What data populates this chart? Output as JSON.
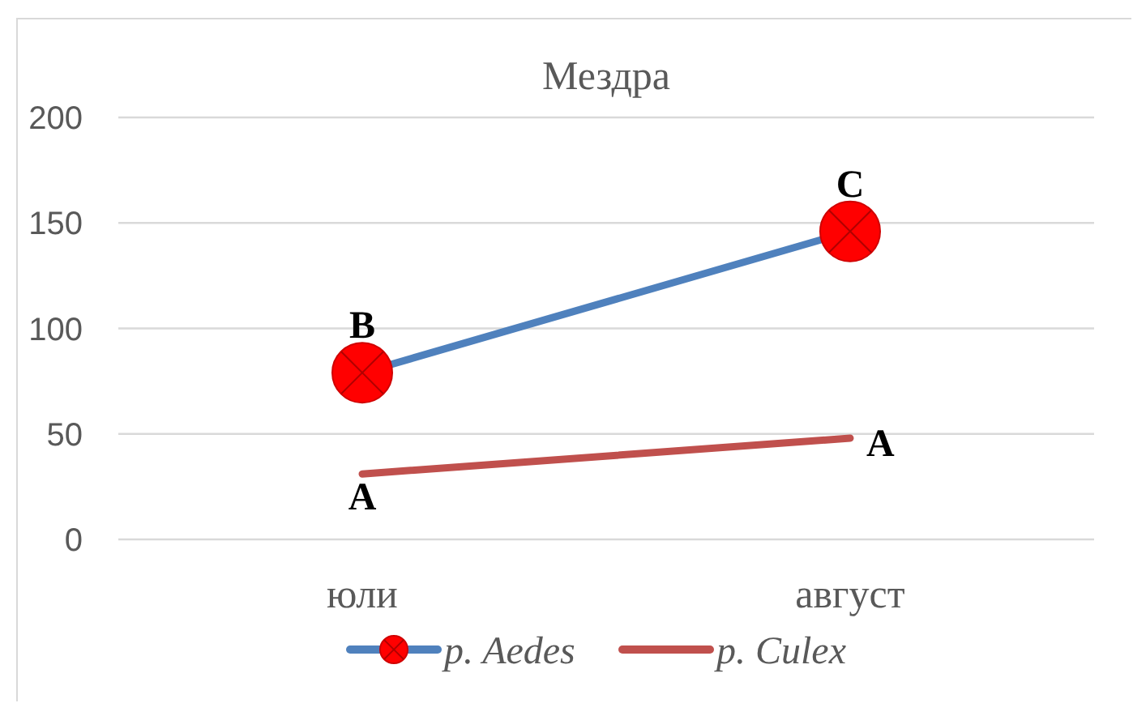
{
  "chart_data": {
    "type": "line",
    "title": "Мездра",
    "categories": [
      "юли",
      "август"
    ],
    "series": [
      {
        "name": "p. Aedes",
        "color": "#4f81bd",
        "colors": [
          "#ff0000",
          "#ff0000"
        ],
        "marker": "circle",
        "values": [
          79,
          146
        ],
        "value_labels": [
          "B",
          "C"
        ]
      },
      {
        "name": "p. Culex",
        "color": "#c0504d",
        "marker": "none",
        "values": [
          31,
          48
        ],
        "value_labels": [
          "A",
          "A"
        ]
      }
    ],
    "ylim": [
      0,
      200
    ],
    "yticks": [
      0,
      50,
      100,
      150,
      200
    ],
    "grid": "y",
    "legend": "bottom"
  }
}
